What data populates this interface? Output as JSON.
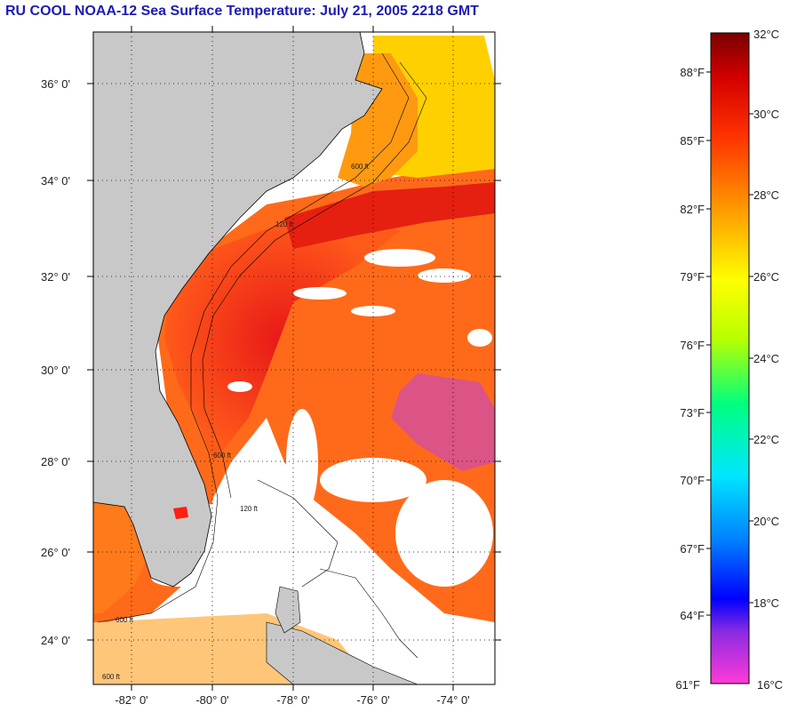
{
  "title": "RU COOL  NOAA-12  Sea Surface Temperature:  July 21, 2005 2218 GMT",
  "map": {
    "lat_labels": [
      "36° 0'",
      "34° 0'",
      "32° 0'",
      "30° 0'",
      "28° 0'",
      "26° 0'",
      "24° 0'"
    ],
    "lon_labels": [
      "-82° 0'",
      "-80° 0'",
      "-78° 0'",
      "-76° 0'",
      "-74° 0'"
    ],
    "contour_labels": [
      "600 ft",
      "120 ft",
      "600 ft",
      "120 ft",
      "600 ft",
      "600 ft"
    ],
    "colors": {
      "land": "#c8c8c8",
      "cloud": "#ffffff",
      "frame": "#000000"
    }
  },
  "colorbar": {
    "celsius_labels": [
      "32°C",
      "30°C",
      "28°C",
      "26°C",
      "24°C",
      "22°C",
      "20°C",
      "18°C",
      "16°C"
    ],
    "fahrenheit_labels": [
      "88°F",
      "85°F",
      "82°F",
      "79°F",
      "76°F",
      "73°F",
      "70°F",
      "67°F",
      "64°F",
      "61°F"
    ],
    "celsius_min": 16,
    "celsius_max": 32,
    "stops": [
      "#ff3ad8",
      "#8a2be2",
      "#0000ff",
      "#0080ff",
      "#00e6ff",
      "#00ff80",
      "#b8ff00",
      "#ffff00",
      "#ff9900",
      "#ff3300",
      "#d40000",
      "#7a0000"
    ]
  }
}
